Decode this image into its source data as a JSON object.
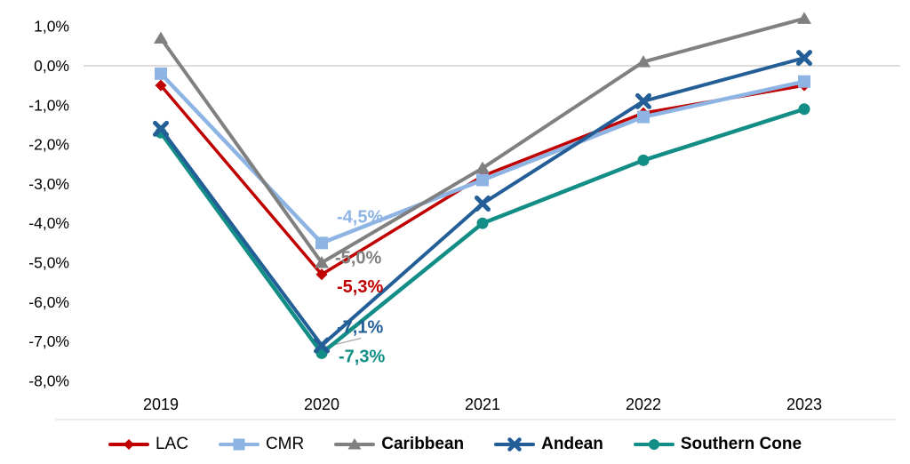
{
  "chart_data": {
    "type": "line",
    "title": "",
    "xlabel": "",
    "ylabel": "",
    "categories": [
      "2019",
      "2020",
      "2021",
      "2022",
      "2023"
    ],
    "series": [
      {
        "name": "LAC",
        "color": "#C00000",
        "marker": "diamond",
        "bold_legend": false,
        "values": [
          -0.5,
          -5.3,
          -2.8,
          -1.2,
          -0.5
        ]
      },
      {
        "name": "CMR",
        "color": "#8EB4E3",
        "marker": "square",
        "bold_legend": false,
        "values": [
          -0.2,
          -4.5,
          -2.9,
          -1.3,
          -0.4
        ]
      },
      {
        "name": "Caribbean",
        "color": "#808080",
        "marker": "triangle",
        "bold_legend": true,
        "values": [
          0.7,
          -5.0,
          -2.6,
          0.1,
          1.2
        ]
      },
      {
        "name": "Andean",
        "color": "#235E97",
        "marker": "x",
        "bold_legend": true,
        "values": [
          -1.6,
          -7.1,
          -3.5,
          -0.9,
          0.2
        ]
      },
      {
        "name": "Southern Cone",
        "color": "#128E86",
        "marker": "circle",
        "bold_legend": true,
        "values": [
          -1.7,
          -7.3,
          -4.0,
          -2.4,
          -1.1
        ]
      }
    ],
    "data_labels_2020": [
      {
        "series": "CMR",
        "text": "-4,5%"
      },
      {
        "series": "Caribbean",
        "text": "-5,0%"
      },
      {
        "series": "LAC",
        "text": "-5,3%"
      },
      {
        "series": "Andean",
        "text": "-7,1%"
      },
      {
        "series": "Southern Cone",
        "text": "-7,3%"
      }
    ],
    "y_axis": {
      "ticks": [
        "1,0%",
        "0,0%",
        "-1,0%",
        "-2,0%",
        "-3,0%",
        "-4,0%",
        "-5,0%",
        "-6,0%",
        "-7,0%",
        "-8,0%"
      ],
      "tick_values": [
        1,
        0,
        -1,
        -2,
        -3,
        -4,
        -5,
        -6,
        -7,
        -8
      ],
      "ylim": [
        -8,
        1
      ]
    },
    "grid": "zero-line-only",
    "legend_position": "bottom",
    "colors": {
      "zero_line": "#C9C7C5",
      "bottom_rule": "#D9D9D9",
      "leader_line": "#A6A6A6",
      "tick_text": "#000000"
    }
  }
}
